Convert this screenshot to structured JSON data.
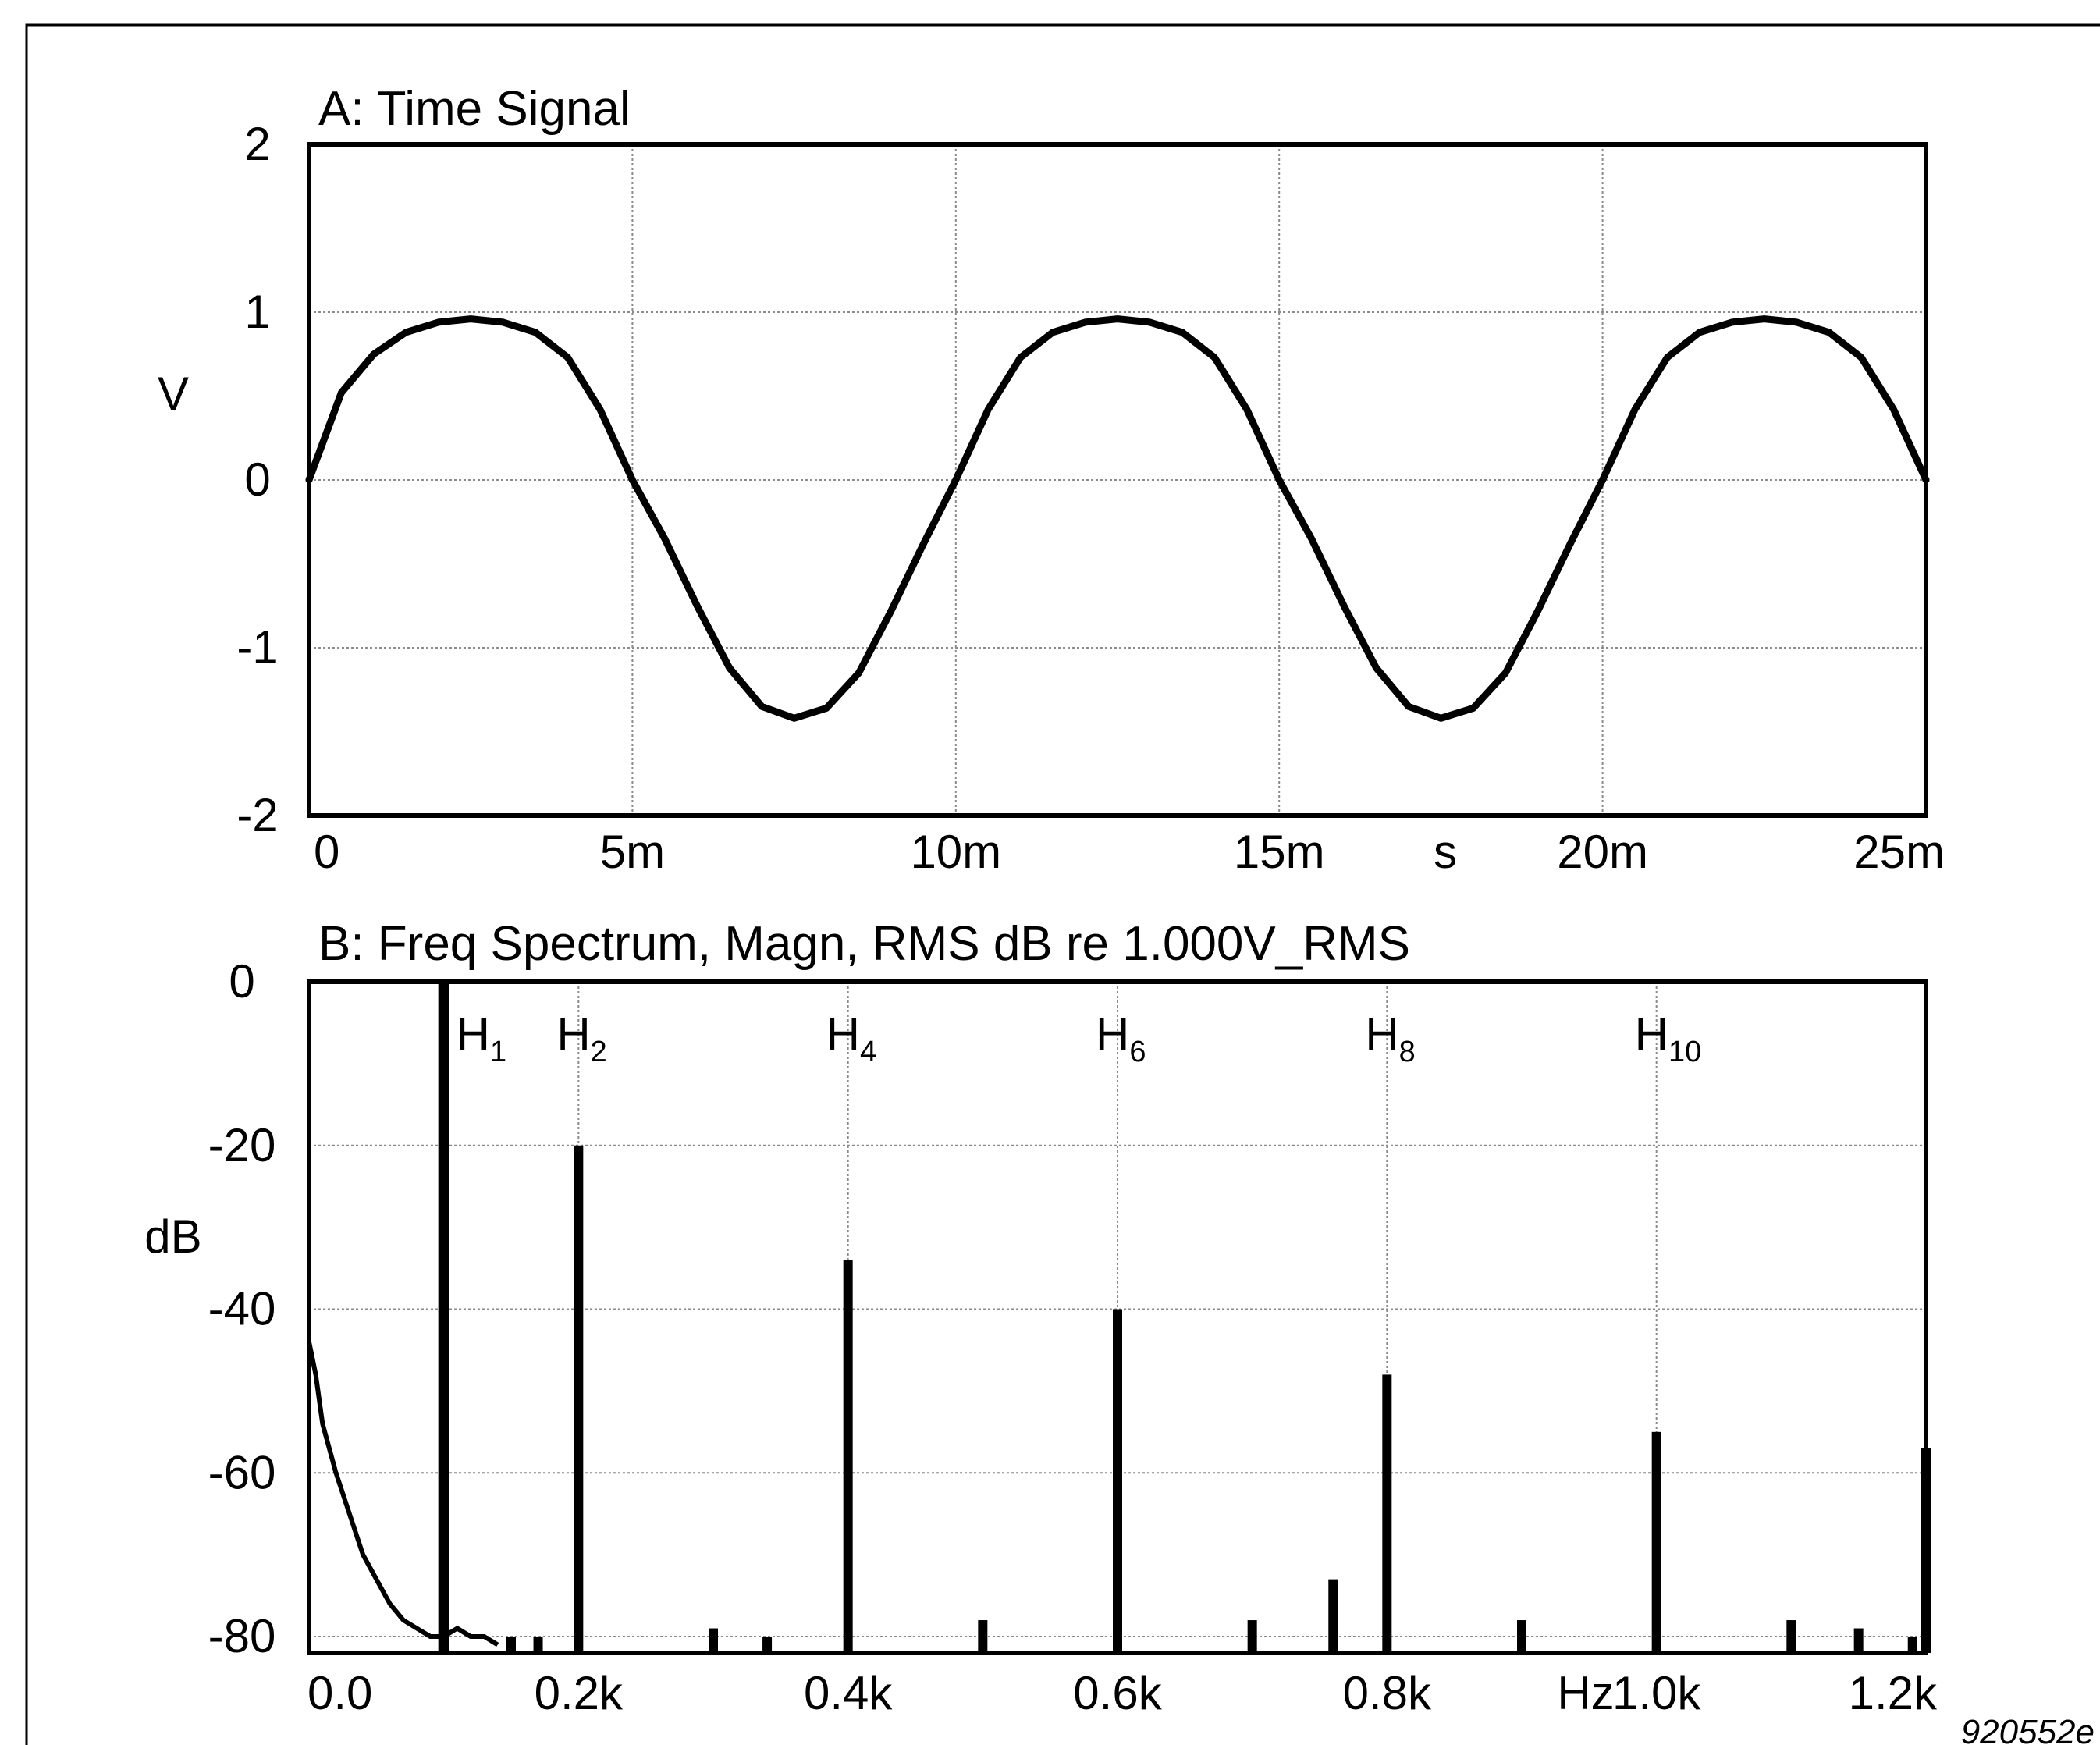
{
  "chart_data": [
    {
      "type": "line",
      "title": "A: Time Signal",
      "ylabel": "V",
      "xlabel": "s",
      "ylim": [
        -2,
        2
      ],
      "xlim": [
        0,
        0.025
      ],
      "yticks": [
        2,
        1,
        0,
        -1,
        -2
      ],
      "ytick_labels": [
        "2",
        "1",
        "0",
        "-1",
        "-2"
      ],
      "xticks": [
        0,
        0.005,
        0.01,
        0.015,
        0.02,
        0.025
      ],
      "xtick_labels": [
        "0",
        "5m",
        "10m",
        "15m",
        "20m",
        "25m"
      ],
      "grid": true,
      "series": [
        {
          "x": [
            0,
            0.0005,
            0.001,
            0.0015,
            0.002,
            0.0025,
            0.003,
            0.0035,
            0.004,
            0.0045,
            0.005,
            0.0055,
            0.006,
            0.0065,
            0.007,
            0.0075,
            0.008,
            0.0085,
            0.009,
            0.0095,
            0.01,
            0.0105,
            0.011,
            0.0115,
            0.012,
            0.0125,
            0.013,
            0.0135,
            0.014,
            0.0145,
            0.015,
            0.0155,
            0.016,
            0.0165,
            0.017,
            0.0175,
            0.018,
            0.0185,
            0.019,
            0.0195,
            0.02,
            0.0205,
            0.021,
            0.0215,
            0.022,
            0.0225,
            0.023,
            0.0235,
            0.024,
            0.0245,
            0.025
          ],
          "y": [
            0.0,
            0.52,
            0.75,
            0.88,
            0.94,
            0.96,
            0.94,
            0.88,
            0.73,
            0.42,
            0.0,
            -0.35,
            -0.75,
            -1.12,
            -1.35,
            -1.42,
            -1.36,
            -1.15,
            -0.78,
            -0.38,
            0.0,
            0.42,
            0.73,
            0.88,
            0.94,
            0.96,
            0.94,
            0.88,
            0.73,
            0.42,
            0.0,
            -0.35,
            -0.75,
            -1.12,
            -1.35,
            -1.42,
            -1.36,
            -1.15,
            -0.78,
            -0.38,
            0.0,
            0.42,
            0.73,
            0.88,
            0.94,
            0.96,
            0.94,
            0.88,
            0.73,
            0.42,
            0.0
          ]
        }
      ]
    },
    {
      "type": "bar",
      "title": "B: Freq Spectrum, Magn, RMS dB re 1.000V_RMS",
      "ylabel": "dB",
      "xlabel": "Hz",
      "ylim": [
        -82,
        0
      ],
      "xlim": [
        0,
        1200
      ],
      "yticks": [
        0,
        -20,
        -40,
        -60,
        -80
      ],
      "ytick_labels": [
        "0",
        "-20",
        "-40",
        "-60",
        "-80"
      ],
      "xticks": [
        0,
        200,
        400,
        600,
        800,
        1000,
        1200
      ],
      "xtick_labels": [
        "0.0",
        "0.2k",
        "0.4k",
        "0.6k",
        "0.8k",
        "1.0k",
        "1.2k"
      ],
      "grid": true,
      "harmonics": [
        {
          "label": "H",
          "sub": "1",
          "x": 100,
          "db": 0
        },
        {
          "label": "H",
          "sub": "2",
          "x": 200,
          "db": -20
        },
        {
          "label": "H",
          "sub": "4",
          "x": 400,
          "db": -34
        },
        {
          "label": "H",
          "sub": "6",
          "x": 600,
          "db": -40
        },
        {
          "label": "H",
          "sub": "8",
          "x": 800,
          "db": -48
        },
        {
          "label": "H",
          "sub": "10",
          "x": 1000,
          "db": -55
        }
      ],
      "spurs": [
        {
          "x": 150,
          "db": -80
        },
        {
          "x": 170,
          "db": -80
        },
        {
          "x": 300,
          "db": -79
        },
        {
          "x": 340,
          "db": -80
        },
        {
          "x": 500,
          "db": -78
        },
        {
          "x": 700,
          "db": -78
        },
        {
          "x": 760,
          "db": -73
        },
        {
          "x": 900,
          "db": -78
        },
        {
          "x": 1100,
          "db": -78
        },
        {
          "x": 1150,
          "db": -79
        },
        {
          "x": 1190,
          "db": -80
        },
        {
          "x": 1200,
          "db": -57
        }
      ],
      "noise_floor": {
        "x": [
          0,
          5,
          10,
          20,
          30,
          40,
          50,
          60,
          70,
          80,
          90,
          100,
          110,
          120,
          130,
          140
        ],
        "db": [
          -44,
          -48,
          -54,
          -60,
          -65,
          -70,
          -73,
          -76,
          -78,
          -79,
          -80,
          -80,
          -79,
          -80,
          -80,
          -81
        ]
      }
    }
  ],
  "figure_code": "920552e"
}
